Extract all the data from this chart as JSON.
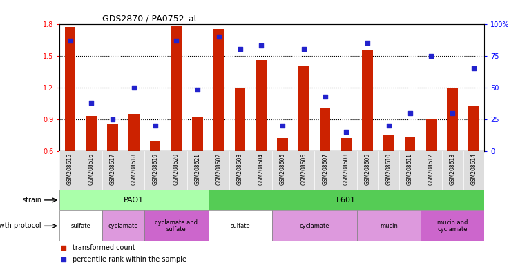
{
  "title": "GDS2870 / PA0752_at",
  "samples": [
    "GSM208615",
    "GSM208616",
    "GSM208617",
    "GSM208618",
    "GSM208619",
    "GSM208620",
    "GSM208621",
    "GSM208602",
    "GSM208603",
    "GSM208604",
    "GSM208605",
    "GSM208606",
    "GSM208607",
    "GSM208608",
    "GSM208609",
    "GSM208610",
    "GSM208611",
    "GSM208612",
    "GSM208613",
    "GSM208614"
  ],
  "bar_values": [
    1.77,
    0.93,
    0.86,
    0.95,
    0.69,
    1.78,
    0.92,
    1.75,
    1.2,
    1.46,
    0.72,
    1.4,
    1.0,
    0.72,
    1.55,
    0.75,
    0.73,
    0.9,
    1.2,
    1.02
  ],
  "pct_values": [
    87,
    38,
    25,
    50,
    20,
    87,
    48,
    90,
    80,
    83,
    20,
    80,
    43,
    15,
    85,
    20,
    30,
    75,
    30,
    65
  ],
  "ylim_left": [
    0.6,
    1.8
  ],
  "ylim_right": [
    0,
    100
  ],
  "yticks_left": [
    0.6,
    0.9,
    1.2,
    1.5,
    1.8
  ],
  "ytick_labels_right": [
    "0",
    "25",
    "50",
    "75",
    "100%"
  ],
  "bar_color": "#CC2200",
  "dot_color": "#2222CC",
  "grid_lines": [
    0.9,
    1.2,
    1.5
  ],
  "PAO1_color": "#AAFFAA",
  "E601_color": "#55CC55",
  "sulfate_color": "#FFFFFF",
  "cyclamate_color": "#DD99DD",
  "cyclamate_sulfate_color": "#CC66CC",
  "legend_bar_label": "transformed count",
  "legend_dot_label": "percentile rank within the sample",
  "growth_blocks": [
    {
      "start": 0,
      "end": 1,
      "label": "sulfate",
      "color": "#FFFFFF"
    },
    {
      "start": 2,
      "end": 3,
      "label": "cyclamate",
      "color": "#DD99DD"
    },
    {
      "start": 4,
      "end": 6,
      "label": "cyclamate and\nsulfate",
      "color": "#CC66CC"
    },
    {
      "start": 7,
      "end": 9,
      "label": "sulfate",
      "color": "#FFFFFF"
    },
    {
      "start": 10,
      "end": 13,
      "label": "cyclamate",
      "color": "#DD99DD"
    },
    {
      "start": 14,
      "end": 16,
      "label": "mucin",
      "color": "#DD99DD"
    },
    {
      "start": 17,
      "end": 19,
      "label": "mucin and\ncyclamate",
      "color": "#CC66CC"
    }
  ]
}
